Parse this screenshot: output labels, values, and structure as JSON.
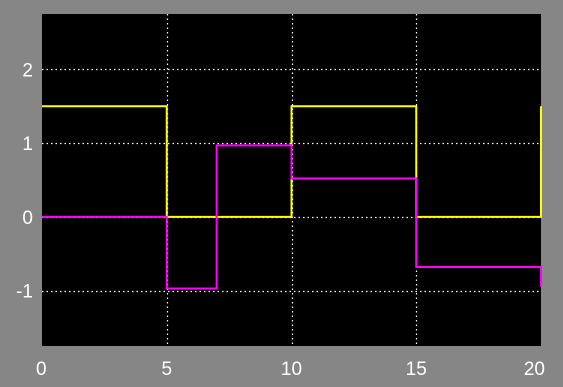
{
  "chart_data": {
    "type": "line",
    "title": "",
    "xlabel": "",
    "ylabel": "",
    "xlim": [
      0,
      20
    ],
    "ylim": [
      -1.75,
      2.75
    ],
    "xticks": [
      "0",
      "5",
      "10",
      "15",
      "20"
    ],
    "yticks": [
      "2",
      "1",
      "0",
      "-1"
    ],
    "grid": true,
    "colors": {
      "figure_background": "#868686",
      "axes_background": "#000000",
      "grid": "#ffffff",
      "series_1": "#ffff00",
      "series_2": "#ff00ff"
    },
    "series": [
      {
        "step": "post",
        "x": [
          0,
          5,
          10,
          15,
          20
        ],
        "values": [
          1.5,
          0,
          1.5,
          0,
          1.5
        ]
      },
      {
        "step": "post",
        "x": [
          0,
          5,
          7,
          10,
          15,
          20
        ],
        "values": [
          0,
          -0.97,
          0.97,
          0.52,
          -0.68,
          -0.95
        ]
      }
    ]
  }
}
